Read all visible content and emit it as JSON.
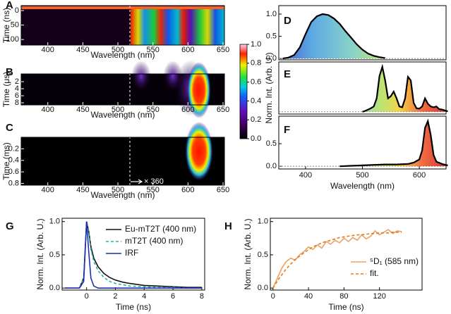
{
  "chart_data": [
    {
      "type": "heatmap",
      "label": "A",
      "x_label": "Wavelength (nm)",
      "y_label": "Time (ns)",
      "xlim": [
        362,
        652
      ],
      "xticks": [
        400,
        450,
        500,
        550,
        600,
        650
      ],
      "ylim": [
        -17,
        119
      ],
      "yticks": [
        0,
        50,
        100
      ],
      "y_inverted": true
    },
    {
      "type": "heatmap",
      "label": "B",
      "x_label": "Wavelength (nm)",
      "y_label": "Time (μs)",
      "xlim": [
        362,
        652
      ],
      "xticks": [
        400,
        450,
        500,
        550,
        600,
        650
      ],
      "ylim": [
        -0.2,
        8.6
      ],
      "yticks": [
        2,
        4,
        6,
        8
      ],
      "y_inverted": true
    },
    {
      "type": "heatmap",
      "label": "C",
      "x_label": "Wavelength (nm)",
      "y_label": "Time (ms)",
      "xlim": [
        362,
        652
      ],
      "xticks": [
        400,
        450,
        500,
        550,
        600,
        650
      ],
      "ylim": [
        0.0,
        0.83
      ],
      "yticks": [
        0.2,
        0.4,
        0.6,
        0.8
      ],
      "y_inverted": true,
      "annotation": "× 360"
    },
    {
      "type": "colorbar",
      "ylim": [
        0,
        1
      ],
      "yticks": [
        {
          "value": 1,
          "label": "1.0"
        },
        {
          "value": 0.8,
          "label": "0.8"
        },
        {
          "value": 0.6,
          "label": "0.6"
        },
        {
          "value": 0.4,
          "label": "0.4"
        },
        {
          "value": 0.2,
          "label": "0.2"
        },
        {
          "value": 0,
          "label": "0.0"
        }
      ]
    },
    {
      "type": "area",
      "label": "D",
      "xlim": [
        353,
        647
      ],
      "ylim": [
        -0.03,
        1.19
      ],
      "yticks": [
        {
          "value": 0,
          "label": "0.0"
        },
        {
          "value": 0.5,
          "label": "0.5"
        },
        {
          "value": 1,
          "label": "1.0"
        }
      ],
      "x": [
        360,
        370,
        380,
        390,
        400,
        410,
        420,
        430,
        440,
        450,
        460,
        470,
        480,
        490,
        500,
        510,
        520,
        530,
        540
      ],
      "values": [
        0,
        0.02,
        0.08,
        0.25,
        0.55,
        0.82,
        0.95,
        1.0,
        0.98,
        0.9,
        0.78,
        0.62,
        0.47,
        0.32,
        0.2,
        0.11,
        0.06,
        0.03,
        0.01
      ]
    },
    {
      "type": "area",
      "label": "E",
      "y_label": "Norm. Int. (Arb. U.)",
      "xlim": [
        353,
        647
      ],
      "ylim": [
        -0.05,
        1.11
      ],
      "x": [
        500,
        505,
        510,
        515,
        520,
        525,
        530,
        535,
        540,
        545,
        550,
        555,
        560,
        565,
        570,
        575,
        580,
        585,
        590,
        595,
        600,
        605,
        610,
        615,
        620,
        625,
        630,
        635,
        640,
        645,
        650
      ],
      "values": [
        0,
        0.02,
        0.05,
        0.08,
        0.12,
        0.3,
        0.8,
        1.0,
        0.7,
        0.3,
        0.35,
        0.45,
        0.3,
        0.12,
        0.1,
        0.3,
        0.78,
        0.7,
        0.2,
        0.08,
        0.07,
        0.12,
        0.3,
        0.18,
        0.12,
        0.1,
        0.12,
        0.06,
        0.05,
        0.03,
        0.01
      ]
    },
    {
      "type": "area",
      "label": "F",
      "x_label": "Wavelength (nm)",
      "xlim": [
        353,
        647
      ],
      "xticks": [
        400,
        500,
        600
      ],
      "ylim": [
        -0.06,
        1.11
      ],
      "yticks": [
        {
          "value": 0,
          "label": "0.0"
        },
        {
          "value": 0.5,
          "label": "0.5"
        }
      ],
      "x": [
        460,
        480,
        500,
        520,
        540,
        560,
        580,
        590,
        600,
        605,
        610,
        615,
        620,
        625,
        630,
        640,
        650
      ],
      "values": [
        0,
        0.01,
        0.02,
        0.03,
        0.04,
        0.04,
        0.05,
        0.08,
        0.15,
        0.35,
        0.85,
        1.0,
        0.7,
        0.25,
        0.1,
        0.05,
        0.02
      ]
    },
    {
      "type": "line",
      "label": "G",
      "x_label": "Time (ns)",
      "y_label": "Norm. Int. (Arb. U.)",
      "xlim": [
        -1.7,
        8.2
      ],
      "xticks": [
        0,
        2,
        4,
        6,
        8
      ],
      "ylim": [
        -0.03,
        1.05
      ],
      "yticks": [
        {
          "value": 0,
          "label": "0.0"
        },
        {
          "value": 0.5,
          "label": "0.5"
        },
        {
          "value": 1,
          "label": "1.0"
        }
      ],
      "x": [
        -1.5,
        -0.5,
        -0.2,
        0,
        0.15,
        0.3,
        0.5,
        0.8,
        1.2,
        1.6,
        2,
        2.5,
        3,
        4,
        5,
        6,
        7,
        8
      ],
      "series": [
        {
          "name": "Eu-mT2T (400 nm)",
          "color": "#111111",
          "dash": false,
          "values": [
            0,
            0,
            0.15,
            1.0,
            0.85,
            0.62,
            0.45,
            0.32,
            0.22,
            0.16,
            0.12,
            0.09,
            0.07,
            0.04,
            0.03,
            0.02,
            0.01,
            0.01
          ]
        },
        {
          "name": "mT2T (400 nm)",
          "color": "#22b5a5",
          "dash": true,
          "values": [
            0,
            0,
            0.15,
            1.0,
            0.82,
            0.58,
            0.4,
            0.26,
            0.16,
            0.1,
            0.07,
            0.05,
            0.03,
            0.02,
            0.01,
            0.01,
            0,
            0
          ]
        },
        {
          "name": "IRF",
          "color": "#1f2fb0",
          "dash": false,
          "values": [
            0,
            0,
            0.1,
            1.0,
            0.55,
            0.15,
            0.03,
            0,
            0,
            0,
            0,
            0,
            0,
            0,
            0,
            0,
            0,
            0
          ]
        }
      ]
    },
    {
      "type": "line",
      "label": "H",
      "x_label": "Time (ns)",
      "y_label": "Norm. Int. (Arb. U.)",
      "xlim": [
        -3,
        168
      ],
      "xticks": [
        0,
        40,
        80,
        120
      ],
      "ylim": [
        -0.03,
        1.05
      ],
      "yticks": [
        {
          "value": 0,
          "label": "0.0"
        },
        {
          "value": 0.5,
          "label": "0.5"
        },
        {
          "value": 1,
          "label": "1.0"
        }
      ],
      "x": [
        0,
        5,
        10,
        15,
        20,
        25,
        30,
        35,
        40,
        45,
        50,
        55,
        60,
        65,
        70,
        75,
        80,
        85,
        90,
        95,
        100,
        105,
        110,
        115,
        120,
        125,
        130,
        135,
        140,
        145
      ],
      "series": [
        {
          "name": "⁵D₁ (585 nm)",
          "color": "#f0a060",
          "dash": false,
          "values": [
            0,
            0.15,
            0.3,
            0.4,
            0.45,
            0.42,
            0.5,
            0.55,
            0.62,
            0.58,
            0.65,
            0.6,
            0.7,
            0.66,
            0.72,
            0.68,
            0.75,
            0.7,
            0.76,
            0.72,
            0.8,
            0.74,
            0.78,
            0.86,
            0.8,
            0.84,
            0.88,
            0.82,
            0.86,
            0.85
          ]
        },
        {
          "name": "fit.",
          "color": "#e07b20",
          "dash": true,
          "values": [
            0,
            0.11,
            0.2,
            0.29,
            0.36,
            0.43,
            0.48,
            0.53,
            0.58,
            0.62,
            0.65,
            0.68,
            0.7,
            0.72,
            0.74,
            0.76,
            0.77,
            0.78,
            0.79,
            0.8,
            0.8,
            0.81,
            0.82,
            0.82,
            0.83,
            0.83,
            0.83,
            0.84,
            0.84,
            0.84
          ]
        }
      ]
    }
  ]
}
